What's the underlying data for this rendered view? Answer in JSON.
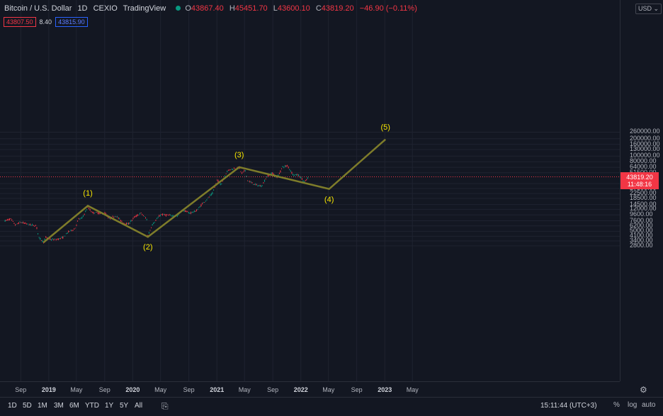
{
  "header": {
    "symbol": "Bitcoin / U.S. Dollar",
    "interval": "1D",
    "exchange": "CEXIO",
    "source": "TradingView",
    "open_key": "O",
    "open": "43867.40",
    "high_key": "H",
    "high": "45451.70",
    "low_key": "L",
    "low": "43600.10",
    "close_key": "C",
    "close": "43819.20",
    "change": "−46.90 (−0.11%)"
  },
  "bidask": {
    "bid": "43807.50",
    "spread": "8.40",
    "ask": "43815.90"
  },
  "currency": "USD",
  "price_axis": {
    "labels": [
      "260000.00",
      "200000.00",
      "160000.00",
      "130000.00",
      "100000.00",
      "80000.00",
      "64000.00",
      "51500.00",
      "33500.00",
      "27500.00",
      "22500.00",
      "18500.00",
      "14500.00",
      "12000.00",
      "9600.00",
      "7600.00",
      "6200.00",
      "5000.00",
      "4100.00",
      "3400.00",
      "2800.00"
    ],
    "last_price": "43819.20",
    "countdown": "11:48:16"
  },
  "time_axis": [
    {
      "label": "Sep",
      "bold": false
    },
    {
      "label": "2019",
      "bold": true
    },
    {
      "label": "May",
      "bold": false
    },
    {
      "label": "Sep",
      "bold": false
    },
    {
      "label": "2020",
      "bold": true
    },
    {
      "label": "May",
      "bold": false
    },
    {
      "label": "Sep",
      "bold": false
    },
    {
      "label": "2021",
      "bold": true
    },
    {
      "label": "May",
      "bold": false
    },
    {
      "label": "Sep",
      "bold": false
    },
    {
      "label": "2022",
      "bold": true
    },
    {
      "label": "May",
      "bold": false
    },
    {
      "label": "Sep",
      "bold": false
    },
    {
      "label": "2023",
      "bold": true
    },
    {
      "label": "May",
      "bold": false
    }
  ],
  "waves": [
    {
      "label": "(1)",
      "date": "2019-06-26",
      "price": 13800
    },
    {
      "label": "(2)",
      "date": "2020-03-13",
      "price": 4000
    },
    {
      "label": "(3)",
      "date": "2021-04-14",
      "price": 64500
    },
    {
      "label": "(4)",
      "date": "2022-05-10",
      "price": 27000
    },
    {
      "label": "(5)",
      "date": "2023-01-10",
      "price": 195000
    }
  ],
  "wave_start": {
    "date": "2018-12-15",
    "price": 3200
  },
  "wave_color": "#7e7c2a",
  "up_color": "#089981",
  "down_color": "#f23645",
  "range_buttons": [
    "1D",
    "5D",
    "1M",
    "3M",
    "6M",
    "YTD",
    "1Y",
    "5Y",
    "All"
  ],
  "clock": "15:11:44 (UTC+3)",
  "log_scale_btn": "log",
  "auto_btn": "auto",
  "price_anchors": [
    {
      "date": "2018-07-01",
      "price": 7600
    },
    {
      "date": "2018-07-25",
      "price": 8200
    },
    {
      "date": "2018-08-15",
      "price": 6400
    },
    {
      "date": "2018-09-05",
      "price": 7200
    },
    {
      "date": "2018-10-15",
      "price": 6500
    },
    {
      "date": "2018-11-14",
      "price": 6200
    },
    {
      "date": "2018-11-25",
      "price": 3900
    },
    {
      "date": "2018-12-15",
      "price": 3250
    },
    {
      "date": "2018-12-25",
      "price": 3900
    },
    {
      "date": "2019-01-15",
      "price": 3600
    },
    {
      "date": "2019-02-10",
      "price": 3600
    },
    {
      "date": "2019-03-10",
      "price": 3900
    },
    {
      "date": "2019-04-05",
      "price": 5000
    },
    {
      "date": "2019-05-01",
      "price": 5500
    },
    {
      "date": "2019-05-15",
      "price": 8000
    },
    {
      "date": "2019-06-01",
      "price": 8500
    },
    {
      "date": "2019-06-26",
      "price": 13000
    },
    {
      "date": "2019-07-15",
      "price": 10500
    },
    {
      "date": "2019-08-01",
      "price": 10500
    },
    {
      "date": "2019-08-20",
      "price": 10200
    },
    {
      "date": "2019-09-10",
      "price": 10300
    },
    {
      "date": "2019-09-26",
      "price": 8200
    },
    {
      "date": "2019-10-26",
      "price": 9300
    },
    {
      "date": "2019-11-25",
      "price": 7100
    },
    {
      "date": "2019-12-18",
      "price": 6600
    },
    {
      "date": "2020-01-15",
      "price": 8800
    },
    {
      "date": "2020-02-13",
      "price": 10300
    },
    {
      "date": "2020-03-08",
      "price": 8000
    },
    {
      "date": "2020-03-13",
      "price": 4200
    },
    {
      "date": "2020-04-01",
      "price": 6500
    },
    {
      "date": "2020-05-08",
      "price": 9800
    },
    {
      "date": "2020-06-15",
      "price": 9400
    },
    {
      "date": "2020-07-20",
      "price": 9200
    },
    {
      "date": "2020-08-10",
      "price": 11800
    },
    {
      "date": "2020-09-10",
      "price": 10300
    },
    {
      "date": "2020-10-10",
      "price": 11300
    },
    {
      "date": "2020-11-05",
      "price": 15000
    },
    {
      "date": "2020-12-01",
      "price": 19000
    },
    {
      "date": "2020-12-20",
      "price": 23000
    },
    {
      "date": "2021-01-08",
      "price": 39000
    },
    {
      "date": "2021-01-25",
      "price": 32000
    },
    {
      "date": "2021-02-20",
      "price": 55000
    },
    {
      "date": "2021-03-13",
      "price": 60000
    },
    {
      "date": "2021-04-14",
      "price": 63000
    },
    {
      "date": "2021-04-25",
      "price": 50000
    },
    {
      "date": "2021-05-10",
      "price": 57000
    },
    {
      "date": "2021-05-20",
      "price": 38000
    },
    {
      "date": "2021-06-22",
      "price": 32000
    },
    {
      "date": "2021-07-20",
      "price": 30000
    },
    {
      "date": "2021-08-15",
      "price": 46000
    },
    {
      "date": "2021-09-07",
      "price": 51000
    },
    {
      "date": "2021-09-25",
      "price": 42000
    },
    {
      "date": "2021-10-20",
      "price": 65000
    },
    {
      "date": "2021-11-10",
      "price": 68000
    },
    {
      "date": "2021-12-04",
      "price": 48000
    },
    {
      "date": "2021-12-28",
      "price": 47000
    },
    {
      "date": "2022-01-10",
      "price": 41000
    },
    {
      "date": "2022-01-24",
      "price": 35000
    },
    {
      "date": "2022-02-05",
      "price": 41500
    },
    {
      "date": "2022-02-10",
      "price": 43800
    }
  ]
}
